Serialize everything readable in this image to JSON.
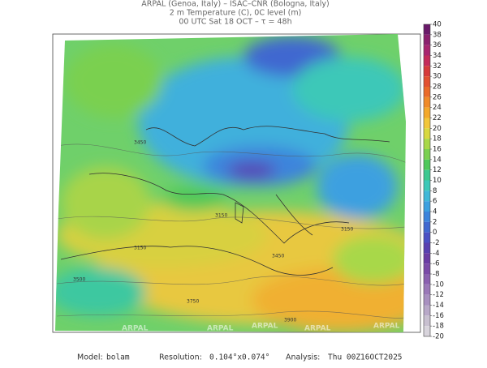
{
  "header": {
    "lines": [
      "ARPAL (Genoa, Italy)  –  ISAC–CNR (Bologna, Italy)",
      "2 m Temperature (C), 0C level (m)",
      "00 UTC Sat 18 OCT  –  τ = 48h"
    ]
  },
  "colorbar": {
    "ticks": [
      40,
      38,
      36,
      34,
      32,
      30,
      28,
      26,
      24,
      22,
      20,
      18,
      16,
      14,
      12,
      10,
      8,
      6,
      4,
      2,
      0,
      -2,
      -4,
      -6,
      -8,
      -10,
      -12,
      -14,
      -16,
      -18,
      -20
    ],
    "colors": [
      "#6a1a6a",
      "#8b1f6e",
      "#a8246f",
      "#c42a5a",
      "#d63a3a",
      "#e25030",
      "#ea6a28",
      "#f08a28",
      "#f4a82a",
      "#f2c63a",
      "#d8d840",
      "#a8d848",
      "#7ad050",
      "#4ec85a",
      "#3cc890",
      "#3cc8b8",
      "#40b8d8",
      "#3ca0e0",
      "#3c84dc",
      "#4068d0",
      "#4a50c4",
      "#5840b0",
      "#6a3ca4",
      "#7a4aa8",
      "#8a60b0",
      "#9a78b8",
      "#a890c0",
      "#b8a8c8",
      "#c8c0d0",
      "#d8d4dc"
    ]
  },
  "contour_labels": [
    "3450",
    "3150",
    "3500",
    "3150",
    "3450",
    "3750",
    "3900",
    "3150"
  ],
  "watermarks": [
    "ARPAL",
    "ARPAL",
    "ARPAL",
    "ARPAL",
    "ARPAL"
  ],
  "footer": {
    "model_label": "Model:",
    "model": "bolam",
    "resolution_label": "Resolution:",
    "resolution": "0.104°x0.074°",
    "analysis_label": "Analysis:",
    "analysis": "Thu 00Z16OCT2025"
  }
}
